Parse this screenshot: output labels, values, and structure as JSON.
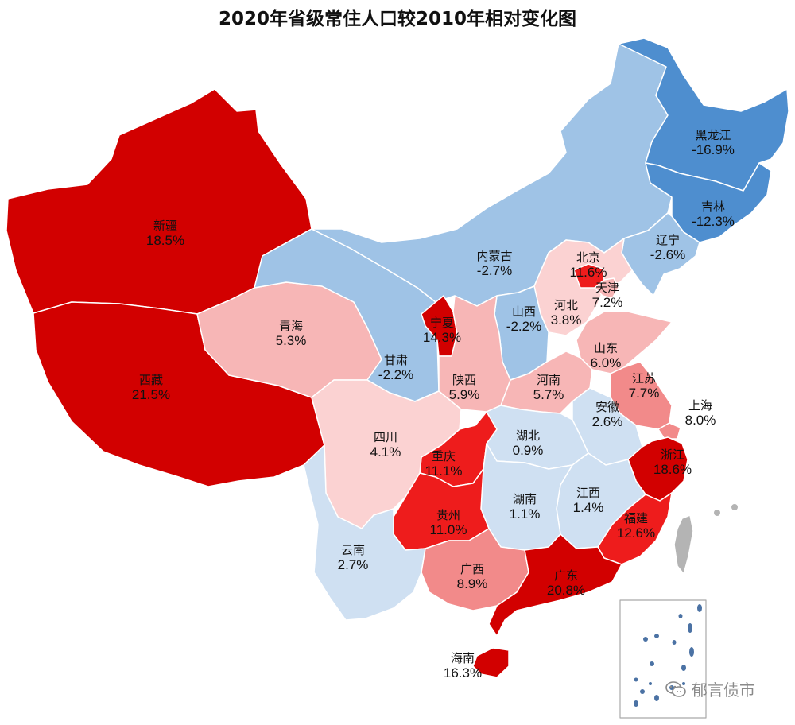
{
  "title": "2020年省级常住人口较2010年相对变化图",
  "colors": {
    "deep_red": "#d20000",
    "red": "#ee1c1c",
    "mid_red": "#f28a8a",
    "light_red": "#f7b6b6",
    "lightest_red": "#fbd2d2",
    "lightest_blue": "#cfe0f2",
    "light_blue": "#9fc3e6",
    "mid_blue": "#4e8ecf",
    "grey": "#b4b4b4"
  },
  "provinces": {
    "xinjiang": {
      "name": "新疆",
      "value": "18.5%"
    },
    "xizang": {
      "name": "西藏",
      "value": "21.5%"
    },
    "qinghai": {
      "name": "青海",
      "value": "5.3%"
    },
    "gansu": {
      "name": "甘肃",
      "value": "-2.2%"
    },
    "neimenggu": {
      "name": "内蒙古",
      "value": "-2.7%"
    },
    "heilongjiang": {
      "name": "黑龙江",
      "value": "-16.9%"
    },
    "jilin": {
      "name": "吉林",
      "value": "-12.3%"
    },
    "liaoning": {
      "name": "辽宁",
      "value": "-2.6%"
    },
    "beijing": {
      "name": "北京",
      "value": "11.6%"
    },
    "tianjin": {
      "name": "天津",
      "value": "7.2%"
    },
    "hebei": {
      "name": "河北",
      "value": "3.8%"
    },
    "shanxi": {
      "name": "山西",
      "value": "-2.2%"
    },
    "ningxia": {
      "name": "宁夏",
      "value": "14.3%"
    },
    "shandong": {
      "name": "山东",
      "value": "6.0%"
    },
    "shaanxi": {
      "name": "陕西",
      "value": "5.9%"
    },
    "henan": {
      "name": "河南",
      "value": "5.7%"
    },
    "jiangsu": {
      "name": "江苏",
      "value": "7.7%"
    },
    "shanghai": {
      "name": "上海",
      "value": "8.0%"
    },
    "anhui": {
      "name": "安徽",
      "value": "2.6%"
    },
    "sichuan": {
      "name": "四川",
      "value": "4.1%"
    },
    "chongqing": {
      "name": "重庆",
      "value": "11.1%"
    },
    "hubei": {
      "name": "湖北",
      "value": "0.9%"
    },
    "zhejiang": {
      "name": "浙江",
      "value": "18.6%"
    },
    "hunan": {
      "name": "湖南",
      "value": "1.1%"
    },
    "jiangxi": {
      "name": "江西",
      "value": "1.4%"
    },
    "guizhou": {
      "name": "贵州",
      "value": "11.0%"
    },
    "fujian": {
      "name": "福建",
      "value": "12.6%"
    },
    "yunnan": {
      "name": "云南",
      "value": "2.7%"
    },
    "guangxi": {
      "name": "广西",
      "value": "8.9%"
    },
    "guangdong": {
      "name": "广东",
      "value": "20.8%"
    },
    "hainan": {
      "name": "海南",
      "value": "16.3%"
    }
  },
  "watermark": "郁言债市"
}
